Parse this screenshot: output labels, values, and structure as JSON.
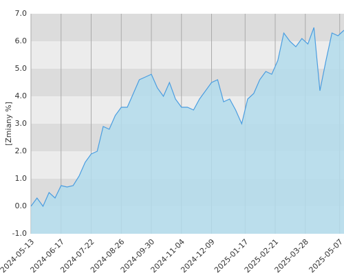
{
  "chart_data": {
    "type": "area",
    "y_label": "[Zmiany %]",
    "x": [
      "2024-05-13",
      "2024-05-20",
      "2024-05-27",
      "2024-06-03",
      "2024-06-10",
      "2024-06-17",
      "2024-06-24",
      "2024-07-01",
      "2024-07-08",
      "2024-07-15",
      "2024-07-22",
      "2024-07-29",
      "2024-08-05",
      "2024-08-12",
      "2024-08-19",
      "2024-08-26",
      "2024-09-02",
      "2024-09-09",
      "2024-09-16",
      "2024-09-23",
      "2024-09-30",
      "2024-10-07",
      "2024-10-14",
      "2024-10-21",
      "2024-10-28",
      "2024-11-04",
      "2024-11-11",
      "2024-11-18",
      "2024-11-25",
      "2024-12-02",
      "2024-12-09",
      "2024-12-16",
      "2024-12-23",
      "2024-12-30",
      "2025-01-06",
      "2025-01-13",
      "2025-01-20",
      "2025-01-27",
      "2025-02-03",
      "2025-02-10",
      "2025-02-17",
      "2025-02-24",
      "2025-03-03",
      "2025-03-10",
      "2025-03-17",
      "2025-03-24",
      "2025-03-31",
      "2025-04-07",
      "2025-04-14",
      "2025-04-21",
      "2025-04-28",
      "2025-05-05",
      "2025-05-12"
    ],
    "series": [
      {
        "color": "#4a9de0",
        "fill": "#b3dcec",
        "values": [
          0.0,
          0.3,
          0.0,
          0.5,
          0.3,
          0.75,
          0.7,
          0.75,
          1.1,
          1.6,
          1.9,
          2.0,
          2.9,
          2.8,
          3.3,
          3.6,
          3.6,
          4.1,
          4.6,
          4.7,
          4.8,
          4.3,
          4.0,
          4.5,
          3.9,
          3.6,
          3.6,
          3.5,
          3.9,
          4.2,
          4.5,
          4.6,
          3.8,
          3.9,
          3.5,
          3.0,
          3.9,
          4.1,
          4.6,
          4.9,
          4.8,
          5.3,
          6.3,
          6.0,
          5.8,
          6.1,
          5.9,
          6.5,
          4.2,
          5.3,
          6.3,
          6.2,
          6.4
        ]
      }
    ],
    "xlim": [
      "2024-05-13",
      "2025-05-12"
    ],
    "xticks": [
      "2024-05-13",
      "2024-06-17",
      "2024-07-22",
      "2024-08-26",
      "2024-09-30",
      "2024-11-04",
      "2024-12-09",
      "2025-01-17",
      "2025-02-21",
      "2025-03-28",
      "2025-05-07"
    ],
    "ylim": [
      -1,
      7
    ],
    "yticks": [
      {
        "value": -1,
        "label": "-1.0"
      },
      {
        "value": 0,
        "label": "0.0"
      },
      {
        "value": 1,
        "label": "1.0"
      },
      {
        "value": 2,
        "label": "2.0"
      },
      {
        "value": 3,
        "label": "3.0"
      },
      {
        "value": 4,
        "label": "4.0"
      },
      {
        "value": 5,
        "label": "5.0"
      },
      {
        "value": 6,
        "label": "6.0"
      },
      {
        "value": 7,
        "label": "7.0"
      }
    ],
    "band_colors": [
      "#ececec",
      "#dcdcdc"
    ],
    "grid_color": "#aaaaaa"
  }
}
